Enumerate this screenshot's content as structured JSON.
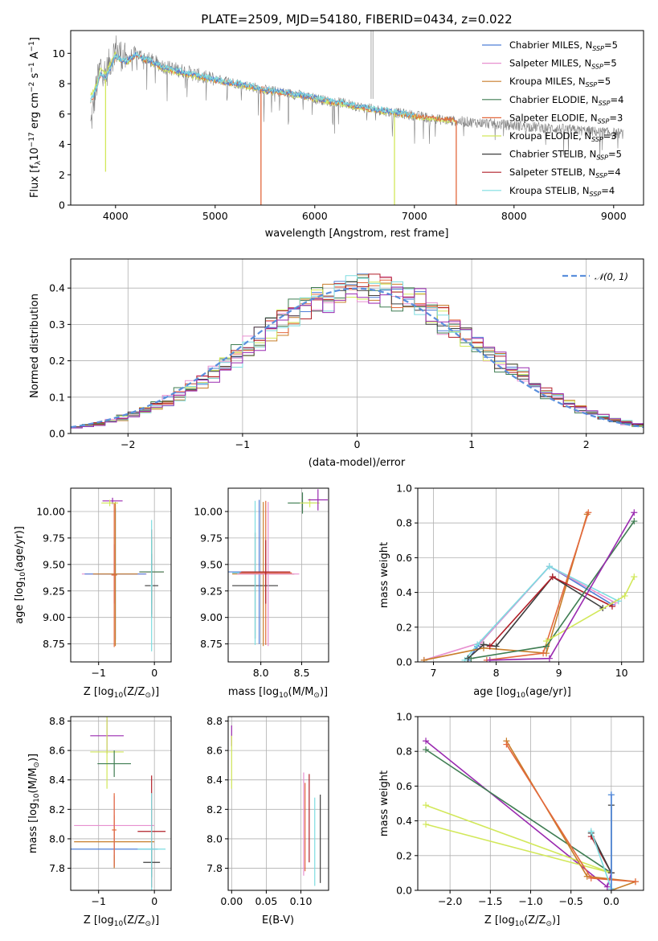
{
  "figure": {
    "title": "PLATE=2509, MJD=54180, FIBERID=0434, z=0.022"
  },
  "colors": {
    "Chabrier MILES": "#4f7fd8",
    "Salpeter MILES": "#e78fd0",
    "Kroupa MILES": "#c87d2a",
    "Chabrier ELODIE": "#3f7d52",
    "Salpeter ELODIE": "#e3683c",
    "Kroupa ELODIE": "#d2e85a",
    "Chabrier STELIB": "#3e3e3e",
    "Salpeter STELIB": "#b11f28",
    "Kroupa STELIB": "#7ddde0",
    "Extra purple": "#9a2ab0",
    "Data": "#808080"
  },
  "chart_data": [
    {
      "id": "spectrum",
      "type": "line",
      "title": "PLATE=2509, MJD=54180, FIBERID=0434, z=0.022",
      "xlabel": "wavelength [Angstrom, rest frame]",
      "ylabel": "Flux [f_λ 10^-17 erg cm^-2 s^-1 A^-1]",
      "xlim": [
        3550,
        9300
      ],
      "ylim": [
        0,
        11.5
      ],
      "xticks": [
        4000,
        5000,
        6000,
        7000,
        8000,
        9000
      ],
      "yticks": [
        0,
        2,
        4,
        6,
        8,
        10
      ],
      "legend": "top-right",
      "legend_entries": [
        {
          "label": "Chabrier MILES, N_SSP=5",
          "color": "#4f7fd8"
        },
        {
          "label": "Salpeter MILES, N_SSP=5",
          "color": "#e78fd0"
        },
        {
          "label": "Kroupa MILES, N_SSP=5",
          "color": "#c87d2a"
        },
        {
          "label": "Chabrier ELODIE, N_SSP=4",
          "color": "#3f7d52"
        },
        {
          "label": "Salpeter ELODIE, N_SSP=3",
          "color": "#e3683c"
        },
        {
          "label": "Kroupa ELODIE, N_SSP=3",
          "color": "#d2e85a"
        },
        {
          "label": "Chabrier STELIB, N_SSP=5",
          "color": "#3e3e3e"
        },
        {
          "label": "Salpeter STELIB, N_SSP=4",
          "color": "#b11f28"
        },
        {
          "label": "Kroupa STELIB, N_SSP=4",
          "color": "#7ddde0"
        }
      ],
      "data_series": {
        "name": "",
        "x": [
          3750,
          3800,
          3850,
          3900,
          3950,
          4000,
          4100,
          4200,
          4300,
          4400,
          4500,
          4700,
          4900,
          5100,
          5300,
          5500,
          5700,
          5900,
          6100,
          6300,
          6500,
          6700,
          6900,
          7100,
          7300,
          7500,
          7700,
          7900,
          8100,
          8300,
          8500,
          8700,
          8900,
          9100
        ],
        "y": [
          5.2,
          7.5,
          9.2,
          8.6,
          9.5,
          10.3,
          9.6,
          10.0,
          9.7,
          9.4,
          9.1,
          8.8,
          8.4,
          8.2,
          7.9,
          7.6,
          7.4,
          7.2,
          6.9,
          6.7,
          6.4,
          6.2,
          6.0,
          5.8,
          5.6,
          5.5,
          5.4,
          5.3,
          5.2,
          5.1,
          5.0,
          4.9,
          4.8,
          4.7
        ]
      },
      "model_series": {
        "name": "",
        "x": [
          3750,
          3800,
          3850,
          3900,
          3950,
          4000,
          4100,
          4200,
          4300,
          4400,
          4500,
          4700,
          4900,
          5100,
          5300,
          5500,
          5700,
          5900,
          6100,
          6300,
          6500,
          6700,
          6900,
          7100,
          7300,
          7420
        ],
        "y": [
          6.8,
          7.5,
          8.6,
          8.3,
          9.0,
          9.8,
          9.4,
          9.9,
          9.6,
          9.3,
          9.0,
          8.7,
          8.4,
          8.1,
          7.9,
          7.6,
          7.4,
          7.2,
          6.9,
          6.7,
          6.4,
          6.2,
          6.0,
          5.8,
          5.7,
          5.6
        ]
      },
      "dropouts": [
        {
          "x": 3900,
          "to": 2.2,
          "color": "#d2e85a"
        },
        {
          "x": 5460,
          "to": 0,
          "color": "#e3683c"
        },
        {
          "x": 6800,
          "to": 0,
          "color": "#d2e85a"
        },
        {
          "x": 7420,
          "to": 0,
          "color": "#e3683c"
        }
      ]
    },
    {
      "id": "residuals",
      "type": "line",
      "title": "",
      "xlabel": "(data-model)/error",
      "ylabel": "Normed distribution",
      "xlim": [
        -2.5,
        2.5
      ],
      "ylim": [
        0,
        0.48
      ],
      "xticks": [
        -2,
        -1,
        0,
        1,
        2
      ],
      "yticks": [
        0.0,
        0.1,
        0.2,
        0.3,
        0.4
      ],
      "grid": true,
      "legend": "top-right",
      "legend_entries": [
        {
          "label": "N(0,1)",
          "color": "#5a8fdc"
        }
      ],
      "gaussian": {
        "mean": 0,
        "sigma": 1
      }
    },
    {
      "id": "age-vs-Z",
      "type": "scatter",
      "xlabel": "Z [log10(Z/Z_sun)]",
      "ylabel": "age [log10(age/yr)]",
      "xlim": [
        -1.5,
        0.3
      ],
      "ylim": [
        8.58,
        10.22
      ],
      "xticks": [
        -1,
        0
      ],
      "yticks": [
        8.75,
        9.0,
        9.25,
        9.5,
        9.75,
        10.0
      ],
      "grid": true,
      "points": [
        {
          "x": -0.72,
          "y": 9.41,
          "xerr": 0.58,
          "yerr": 0.28,
          "color": "#e78fd0"
        },
        {
          "x": -0.7,
          "y": 9.41,
          "xerr": 0.55,
          "yerr": 0.62,
          "color": "#4f7fd8"
        },
        {
          "x": -0.7,
          "y": 9.41,
          "xerr": 0.4,
          "yerr": 0.68,
          "color": "#c87d2a"
        },
        {
          "x": -0.72,
          "y": 9.4,
          "xerr": 0.05,
          "yerr": 0.68,
          "color": "#e3683c"
        },
        {
          "x": -0.75,
          "y": 10.1,
          "xerr": 0.18,
          "yerr": 0.03,
          "color": "#9a2ab0"
        },
        {
          "x": -0.8,
          "y": 10.08,
          "xerr": 0.15,
          "yerr": 0.03,
          "color": "#d2e85a"
        },
        {
          "x": -0.05,
          "y": 9.43,
          "xerr": 0.22,
          "yerr": 0.4,
          "color": "#b11f28"
        },
        {
          "x": -0.05,
          "y": 9.43,
          "xerr": 0.22,
          "yerr": 0.3,
          "color": "#3f7d52"
        },
        {
          "x": -0.05,
          "y": 9.3,
          "xerr": 0.12,
          "yerr": 0.3,
          "color": "#3e3e3e"
        },
        {
          "x": -0.05,
          "y": 9.3,
          "xerr": 0.02,
          "yerr": 0.62,
          "color": "#7ddde0"
        }
      ]
    },
    {
      "id": "age-vs-mass",
      "type": "scatter",
      "xlabel": "mass [log10(M/M_sun)]",
      "ylabel": "",
      "xlim": [
        7.6,
        8.83
      ],
      "ylim": [
        8.58,
        10.22
      ],
      "xticks": [
        8.0,
        8.5
      ],
      "yticks": [
        8.75,
        9.0,
        9.25,
        9.5,
        9.75,
        10.0
      ],
      "grid": true,
      "points": [
        {
          "x": 7.93,
          "y": 9.3,
          "xerr": 0.28,
          "yerr": 0.5,
          "color": "#3e3e3e"
        },
        {
          "x": 7.93,
          "y": 9.42,
          "xerr": 0.28,
          "yerr": 0.68,
          "color": "#7ddde0"
        },
        {
          "x": 7.98,
          "y": 9.43,
          "xerr": 0.38,
          "yerr": 0.68,
          "color": "#4f7fd8"
        },
        {
          "x": 8.03,
          "y": 9.41,
          "xerr": 0.38,
          "yerr": 0.68,
          "color": "#c87d2a"
        },
        {
          "x": 8.09,
          "y": 9.41,
          "xerr": 0.38,
          "yerr": 0.68,
          "color": "#e78fd0"
        },
        {
          "x": 8.06,
          "y": 9.42,
          "xerr": 0.32,
          "yerr": 0.68,
          "color": "#e3683c"
        },
        {
          "x": 8.06,
          "y": 9.43,
          "xerr": 0.3,
          "yerr": 0.3,
          "color": "#b11f28"
        },
        {
          "x": 8.51,
          "y": 10.08,
          "xerr": 0.18,
          "yerr": 0.1,
          "color": "#3f7d52"
        },
        {
          "x": 8.6,
          "y": 10.08,
          "xerr": 0.12,
          "yerr": 0.04,
          "color": "#d2e85a"
        },
        {
          "x": 8.7,
          "y": 10.11,
          "xerr": 0.12,
          "yerr": 0.1,
          "color": "#9a2ab0"
        }
      ]
    },
    {
      "id": "weight-vs-age",
      "type": "line",
      "xlabel": "age [log10(age/yr)]",
      "ylabel": "mass weight",
      "xlim": [
        6.75,
        10.35
      ],
      "ylim": [
        0,
        1.0
      ],
      "xticks": [
        7,
        8,
        9,
        10
      ],
      "yticks": [
        0.0,
        0.2,
        0.4,
        0.6,
        0.8,
        1.0
      ],
      "grid": true,
      "series": [
        {
          "color": "#4f7fd8",
          "x": [
            7.55,
            7.7,
            8.85,
            9.85
          ],
          "y": [
            0.01,
            0.09,
            0.55,
            0.33
          ]
        },
        {
          "color": "#e78fd0",
          "x": [
            6.85,
            7.75,
            8.85,
            9.9
          ],
          "y": [
            0.01,
            0.11,
            0.55,
            0.34
          ]
        },
        {
          "color": "#7ddde0",
          "x": [
            7.5,
            7.7,
            8.85,
            9.95
          ],
          "y": [
            0.01,
            0.1,
            0.55,
            0.35
          ]
        },
        {
          "color": "#c87d2a",
          "x": [
            6.85,
            7.8,
            8.8,
            9.45
          ],
          "y": [
            0.01,
            0.08,
            0.05,
            0.85
          ]
        },
        {
          "color": "#e3683c",
          "x": [
            7.85,
            8.75,
            9.47
          ],
          "y": [
            0.01,
            0.05,
            0.86
          ]
        },
        {
          "color": "#3e3e3e",
          "x": [
            7.55,
            7.8,
            8.0,
            8.9,
            9.7
          ],
          "y": [
            0.02,
            0.1,
            0.09,
            0.49,
            0.31
          ]
        },
        {
          "color": "#b11f28",
          "x": [
            7.9,
            8.9,
            9.85
          ],
          "y": [
            0.09,
            0.49,
            0.32
          ]
        },
        {
          "color": "#3f7d52",
          "x": [
            7.6,
            8.8,
            10.2
          ],
          "y": [
            0.02,
            0.09,
            0.81
          ]
        },
        {
          "color": "#d2e85a",
          "x": [
            8.8,
            10.05,
            10.2
          ],
          "y": [
            0.12,
            0.38,
            0.49
          ]
        },
        {
          "color": "#9a2ab0",
          "x": [
            7.9,
            8.85,
            10.2
          ],
          "y": [
            0.01,
            0.02,
            0.86
          ]
        }
      ]
    },
    {
      "id": "mass-vs-Z",
      "type": "scatter",
      "xlabel": "Z [log10(Z/Z_sun)]",
      "ylabel": "mass [log10(M/M_sun)]",
      "xlim": [
        -1.5,
        0.3
      ],
      "ylim": [
        7.65,
        8.83
      ],
      "xticks": [
        -1,
        0
      ],
      "yticks": [
        7.8,
        8.0,
        8.2,
        8.4,
        8.6,
        8.8
      ],
      "grid": true,
      "points": [
        {
          "x": -0.72,
          "y": 7.93,
          "xerr": 0.78,
          "yerr": 0.12,
          "color": "#4f7fd8"
        },
        {
          "x": -0.72,
          "y": 7.98,
          "xerr": 0.72,
          "yerr": 0.18,
          "color": "#c87d2a"
        },
        {
          "x": -0.72,
          "y": 8.09,
          "xerr": 0.72,
          "yerr": 0.2,
          "color": "#e78fd0"
        },
        {
          "x": -0.72,
          "y": 8.06,
          "xerr": 0.04,
          "yerr": 0.25,
          "color": "#e3683c"
        },
        {
          "x": -0.85,
          "y": 8.7,
          "xerr": 0.3,
          "yerr": 0.12,
          "color": "#9a2ab0"
        },
        {
          "x": -0.85,
          "y": 8.59,
          "xerr": 0.3,
          "yerr": 0.25,
          "color": "#d2e85a"
        },
        {
          "x": -0.72,
          "y": 8.51,
          "xerr": 0.3,
          "yerr": 0.09,
          "color": "#3f7d52"
        },
        {
          "x": -0.05,
          "y": 8.05,
          "xerr": 0.25,
          "yerr": 0.38,
          "color": "#b11f28"
        },
        {
          "x": -0.05,
          "y": 7.84,
          "xerr": 0.15,
          "yerr": 0.1,
          "color": "#3e3e3e"
        },
        {
          "x": -0.05,
          "y": 7.93,
          "xerr": 0.25,
          "yerr": 0.38,
          "color": "#7ddde0"
        }
      ]
    },
    {
      "id": "mass-vs-ebv",
      "type": "scatter",
      "xlabel": "E(B-V)",
      "ylabel": "",
      "xlim": [
        -0.005,
        0.14
      ],
      "ylim": [
        7.65,
        8.83
      ],
      "xticks": [
        0.0,
        0.05,
        0.1
      ],
      "yticks": [
        7.8,
        8.0,
        8.2,
        8.4,
        8.6,
        8.8
      ],
      "grid": true,
      "points": [
        {
          "x": 0.0,
          "y": 8.7,
          "xerr": 0,
          "yerr": 0.07,
          "color": "#9a2ab0"
        },
        {
          "x": 0.0,
          "y": 8.52,
          "xerr": 0,
          "yerr": 0.18,
          "color": "#d2e85a"
        },
        {
          "x": 0.104,
          "y": 8.1,
          "xerr": 0,
          "yerr": 0.35,
          "color": "#e78fd0"
        },
        {
          "x": 0.106,
          "y": 8.08,
          "xerr": 0,
          "yerr": 0.3,
          "color": "#e3683c"
        },
        {
          "x": 0.112,
          "y": 8.14,
          "xerr": 0,
          "yerr": 0.3,
          "color": "#b11f28"
        },
        {
          "x": 0.12,
          "y": 7.98,
          "xerr": 0,
          "yerr": 0.3,
          "color": "#7ddde0"
        },
        {
          "x": 0.128,
          "y": 8.0,
          "xerr": 0,
          "yerr": 0.3,
          "color": "#3e3e3e"
        }
      ]
    },
    {
      "id": "weight-vs-Z",
      "type": "line",
      "xlabel": "Z [log10(Z/Z_sun)]",
      "ylabel": "mass weight",
      "xlim": [
        -2.4,
        0.4
      ],
      "ylim": [
        0,
        1.0
      ],
      "xticks": [
        -2.0,
        -1.5,
        -1.0,
        -0.5,
        0.0
      ],
      "yticks": [
        0.0,
        0.2,
        0.4,
        0.6,
        0.8,
        1.0
      ],
      "grid": true,
      "series": [
        {
          "color": "#9a2ab0",
          "x": [
            -2.3,
            -0.05,
            0.0
          ],
          "y": [
            0.86,
            0.02,
            0.1
          ]
        },
        {
          "color": "#3f7d52",
          "x": [
            -2.3,
            0.0
          ],
          "y": [
            0.81,
            0.1
          ]
        },
        {
          "color": "#d2e85a",
          "x": [
            -2.3,
            0.0,
            -2.3
          ],
          "y": [
            0.38,
            0.1,
            0.49
          ]
        },
        {
          "color": "#c87d2a",
          "x": [
            -1.3,
            -0.3,
            0.3,
            0.0
          ],
          "y": [
            0.86,
            0.08,
            0.05,
            0.0
          ]
        },
        {
          "color": "#e3683c",
          "x": [
            -1.3,
            -0.25,
            0.3
          ],
          "y": [
            0.84,
            0.07,
            0.05
          ]
        },
        {
          "color": "#b11f28",
          "x": [
            -0.25,
            0.0
          ],
          "y": [
            0.31,
            0.1
          ]
        },
        {
          "color": "#3e3e3e",
          "x": [
            -0.25,
            0.0,
            0.0
          ],
          "y": [
            0.33,
            0.1,
            0.49
          ]
        },
        {
          "color": "#7ddde0",
          "x": [
            -0.25,
            0.0,
            0.0
          ],
          "y": [
            0.34,
            0.01,
            0.55
          ]
        },
        {
          "color": "#4f7fd8",
          "x": [
            0.0,
            0.0
          ],
          "y": [
            0.0,
            0.55
          ]
        }
      ]
    }
  ]
}
